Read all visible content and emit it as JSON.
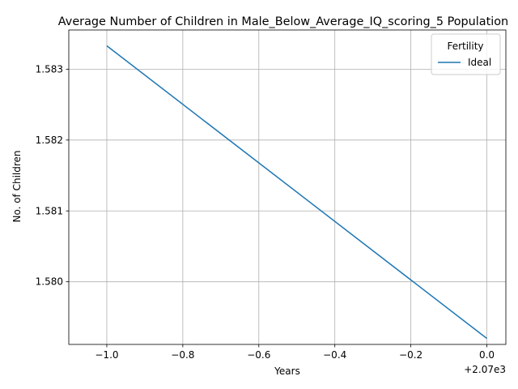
{
  "chart_data": {
    "type": "line",
    "title": "Average Number of Children in Male_Below_Average_IQ_scoring_5 Population",
    "xlabel": "Years",
    "ylabel": "No. of Children",
    "x_offset_label": "+2.07e3",
    "xlim": [
      -1.1,
      0.05
    ],
    "ylim": [
      1.579116,
      1.583553
    ],
    "x_ticks": [
      -1.0,
      -0.8,
      -0.6,
      -0.4,
      -0.2,
      0.0
    ],
    "x_tick_labels": [
      "−1.0",
      "−0.8",
      "−0.6",
      "−0.4",
      "−0.2",
      "0.0"
    ],
    "y_ticks": [
      1.58,
      1.581,
      1.582,
      1.583
    ],
    "y_tick_labels": [
      "1.580",
      "1.581",
      "1.582",
      "1.583"
    ],
    "grid": true,
    "legend": {
      "title": "Fertility",
      "placement": "upper right"
    },
    "series": [
      {
        "name": "Ideal",
        "color": "#1f77b4",
        "x": [
          -1.0,
          0.0
        ],
        "y": [
          1.58333,
          1.5792
        ]
      }
    ]
  }
}
